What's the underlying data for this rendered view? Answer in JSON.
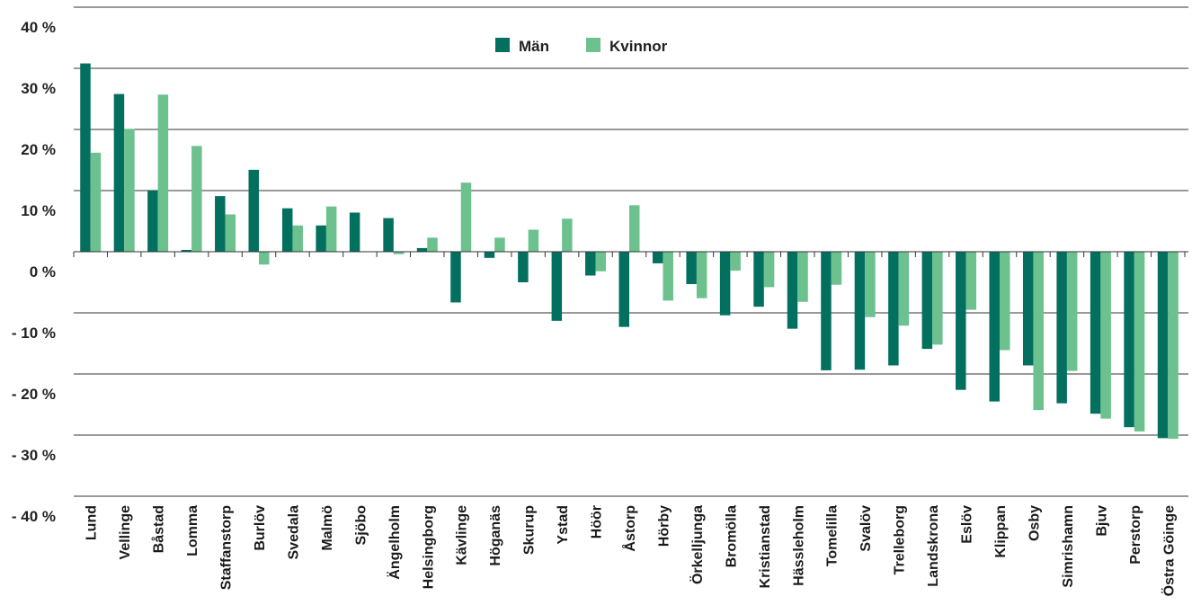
{
  "colors": {
    "men": "#03705f",
    "women": "#6cc18e",
    "grid": "#333333"
  },
  "legend": {
    "men_label": "Män",
    "women_label": "Kvinnor"
  },
  "chart_data": {
    "type": "bar",
    "title": "",
    "xlabel": "",
    "ylabel": "",
    "ylim": [
      -40,
      40
    ],
    "yticks": [
      {
        "value": 40,
        "label": "40 %"
      },
      {
        "value": 30,
        "label": "30 %"
      },
      {
        "value": 20,
        "label": "20 %"
      },
      {
        "value": 10,
        "label": "10 %"
      },
      {
        "value": 0,
        "label": "0 %"
      },
      {
        "value": -10,
        "label": "- 10 %"
      },
      {
        "value": -20,
        "label": "- 20 %"
      },
      {
        "value": -30,
        "label": "- 30 %"
      },
      {
        "value": -40,
        "label": "- 40 %"
      }
    ],
    "grid": true,
    "legend_position": "top-center",
    "categories": [
      "Lund",
      "Vellinge",
      "Båstad",
      "Lomma",
      "Staffanstorp",
      "Burlöv",
      "Svedala",
      "Malmö",
      "Sjöbo",
      "Ängelholm",
      "Helsingborg",
      "Kävlinge",
      "Höganäs",
      "Skurup",
      "Ystad",
      "Höör",
      "Åstorp",
      "Hörby",
      "Örkelljunga",
      "Bromölla",
      "Kristianstad",
      "Hässleholm",
      "Tomelilla",
      "Svalöv",
      "Trelleborg",
      "Landskrona",
      "Eslöv",
      "Klippan",
      "Osby",
      "Simrishamn",
      "Bjuv",
      "Perstorp",
      "Östra Göinge"
    ],
    "series": [
      {
        "name": "Män",
        "values": [
          30.8,
          25.8,
          10.0,
          0.3,
          9.1,
          13.4,
          7.1,
          4.3,
          6.4,
          5.5,
          0.6,
          -8.3,
          -1.0,
          -5.0,
          -11.3,
          -3.9,
          -12.3,
          -1.9,
          -5.3,
          -10.4,
          -9.0,
          -12.6,
          -19.4,
          -19.3,
          -18.6,
          -15.9,
          -22.6,
          -24.5,
          -18.6,
          -24.8,
          -26.5,
          -28.7,
          -30.5
        ]
      },
      {
        "name": "Kvinnor",
        "values": [
          16.2,
          20.1,
          25.7,
          17.3,
          6.1,
          -2.1,
          4.3,
          7.4,
          0.0,
          -0.4,
          2.3,
          11.3,
          2.3,
          3.6,
          5.4,
          -3.2,
          7.6,
          -8.0,
          -7.6,
          -3.1,
          -5.8,
          -8.2,
          -5.4,
          -10.7,
          -12.1,
          -15.2,
          -9.5,
          -16.1,
          -25.9,
          -19.5,
          -27.3,
          -29.4,
          -30.6
        ]
      }
    ]
  }
}
